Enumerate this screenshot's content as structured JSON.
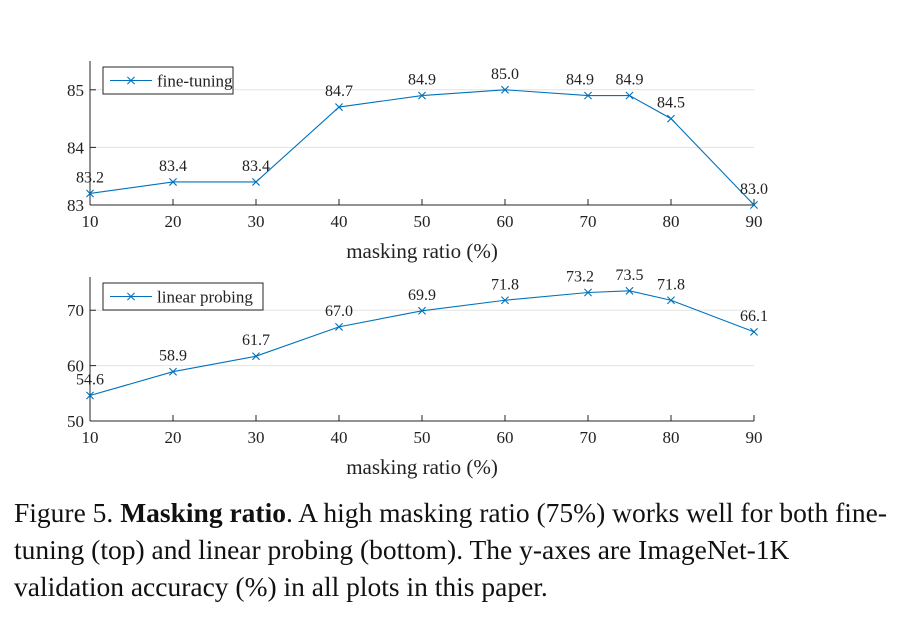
{
  "chart_data": [
    {
      "type": "line",
      "x": [
        10,
        20,
        30,
        40,
        50,
        60,
        70,
        75,
        80,
        90
      ],
      "series": [
        {
          "name": "fine-tuning",
          "values": [
            83.2,
            83.4,
            83.4,
            84.7,
            84.9,
            85.0,
            84.9,
            84.9,
            84.5,
            83.0
          ],
          "color": "#0072bd"
        }
      ],
      "data_labels": [
        "83.2",
        "83.4",
        "83.4",
        "84.7",
        "84.9",
        "85.0",
        "84.9",
        "84.9",
        "84.5",
        "83.0"
      ],
      "xlabel": "masking ratio (%)",
      "ylabel": "",
      "xlim": [
        10,
        90
      ],
      "ylim": [
        83,
        85.5
      ],
      "xticks": [
        10,
        20,
        30,
        40,
        50,
        60,
        70,
        80,
        90
      ],
      "yticks": [
        83,
        84,
        85
      ],
      "grid": "horizontal",
      "legend": "top-left",
      "marker": "x"
    },
    {
      "type": "line",
      "x": [
        10,
        20,
        30,
        40,
        50,
        60,
        70,
        75,
        80,
        90
      ],
      "series": [
        {
          "name": "linear probing",
          "values": [
            54.6,
            58.9,
            61.7,
            67.0,
            69.9,
            71.8,
            73.2,
            73.5,
            71.8,
            66.1
          ],
          "color": "#0072bd"
        }
      ],
      "data_labels": [
        "54.6",
        "58.9",
        "61.7",
        "67.0",
        "69.9",
        "71.8",
        "73.2",
        "73.5",
        "71.8",
        "66.1"
      ],
      "xlabel": "masking ratio (%)",
      "ylabel": "",
      "xlim": [
        10,
        90
      ],
      "ylim": [
        50,
        76
      ],
      "xticks": [
        10,
        20,
        30,
        40,
        50,
        60,
        70,
        80,
        90
      ],
      "yticks": [
        50,
        60,
        70
      ],
      "grid": "horizontal",
      "legend": "top-left",
      "marker": "x"
    }
  ],
  "caption": {
    "label": "Figure 5.",
    "title": "Masking ratio",
    "text": ". A high masking ratio (75%) works well for both fine-tuning (top) and linear probing (bottom). The y-axes are ImageNet-1K validation accuracy (%) in all plots in this paper."
  }
}
